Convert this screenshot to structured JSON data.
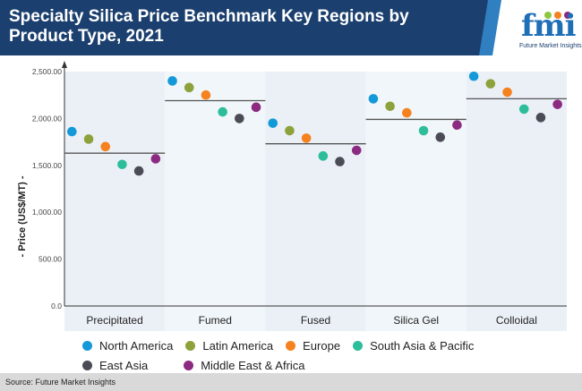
{
  "header": {
    "title": "Specialty Silica Price Benchmark Key Regions by Product Type, 2021",
    "logo_text": "fmi",
    "logo_tagline": "Future Market Insights"
  },
  "chart_data": {
    "type": "scatter",
    "title": "Specialty Silica Price Benchmark Key Regions by Product Type, 2021",
    "ylabel": "- Price (US$/MT) -",
    "xlabel": "",
    "ylim": [
      0,
      2500
    ],
    "yticks": [
      "0.0",
      "500.00",
      "1,000.00",
      "1,500.00",
      "2,000.00",
      "2,500.00"
    ],
    "ytick_values": [
      0,
      500,
      1000,
      1500,
      2000,
      2500
    ],
    "categories": [
      "Precipitated",
      "Fumed",
      "Fused",
      "Silica Gel",
      "Colloidal"
    ],
    "series": [
      {
        "name": "North America",
        "color": "#1399d8",
        "values": [
          1860,
          2400,
          1950,
          2210,
          2450
        ]
      },
      {
        "name": "Latin America",
        "color": "#8da23b",
        "values": [
          1780,
          2330,
          1870,
          2130,
          2370
        ]
      },
      {
        "name": "Europe",
        "color": "#f5821f",
        "values": [
          1700,
          2250,
          1790,
          2060,
          2280
        ]
      },
      {
        "name": "South Asia & Pacific",
        "color": "#2dbd9a",
        "values": [
          1510,
          2070,
          1600,
          1870,
          2100
        ]
      },
      {
        "name": "East Asia",
        "color": "#4a4b55",
        "values": [
          1440,
          2000,
          1540,
          1800,
          2010
        ]
      },
      {
        "name": "Middle East & Africa",
        "color": "#8b2a80",
        "values": [
          1570,
          2120,
          1660,
          1930,
          2150
        ]
      }
    ],
    "averages": [
      1630,
      2190,
      1730,
      1990,
      2210
    ],
    "grid": false,
    "legend": "bottom"
  },
  "footer": {
    "source": "Source: Future Market Insights"
  }
}
